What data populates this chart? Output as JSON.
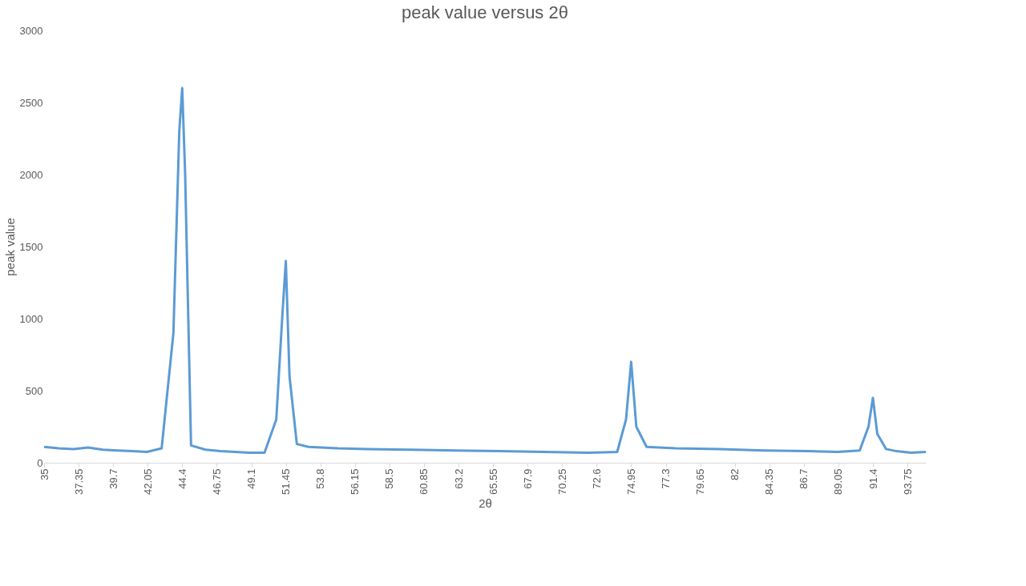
{
  "chart_data": {
    "type": "line",
    "title": "peak value versus 2θ",
    "xlabel": "2θ",
    "ylabel": "peak value",
    "x": [
      35,
      36,
      37,
      38,
      39,
      40,
      41,
      42,
      43,
      43.8,
      44.2,
      44.4,
      44.6,
      45,
      46,
      47,
      48,
      49,
      50,
      50.8,
      51.2,
      51.45,
      51.7,
      52.2,
      53,
      55,
      57,
      60,
      63,
      66,
      69,
      72,
      74,
      74.6,
      74.95,
      75.3,
      76,
      78,
      81,
      84,
      87,
      89,
      90.5,
      91.1,
      91.4,
      91.7,
      92.3,
      93,
      94,
      95
    ],
    "series": [
      {
        "color": "#5b9bd5",
        "values": [
          110,
          100,
          95,
          105,
          90,
          85,
          80,
          75,
          100,
          900,
          2300,
          2600,
          2000,
          120,
          90,
          80,
          75,
          70,
          70,
          300,
          1000,
          1400,
          600,
          130,
          110,
          100,
          95,
          90,
          85,
          80,
          75,
          70,
          75,
          300,
          700,
          250,
          110,
          100,
          95,
          85,
          80,
          75,
          85,
          250,
          450,
          200,
          95,
          80,
          70,
          75
        ]
      }
    ],
    "xlim": [
      35,
      95
    ],
    "xticks": [
      35,
      37.35,
      39.7,
      42.05,
      44.4,
      46.75,
      49.1,
      51.45,
      53.8,
      56.15,
      58.5,
      60.85,
      63.2,
      65.55,
      67.9,
      70.25,
      72.6,
      74.95,
      77.3,
      79.65,
      82,
      84.35,
      86.7,
      89.05,
      91.4,
      93.75
    ],
    "ylim": [
      0,
      3000
    ],
    "yticks": [
      0,
      500,
      1000,
      1500,
      2000,
      2500,
      3000
    ],
    "grid": false,
    "legend": false,
    "marker": "none",
    "line_style": "solid"
  }
}
